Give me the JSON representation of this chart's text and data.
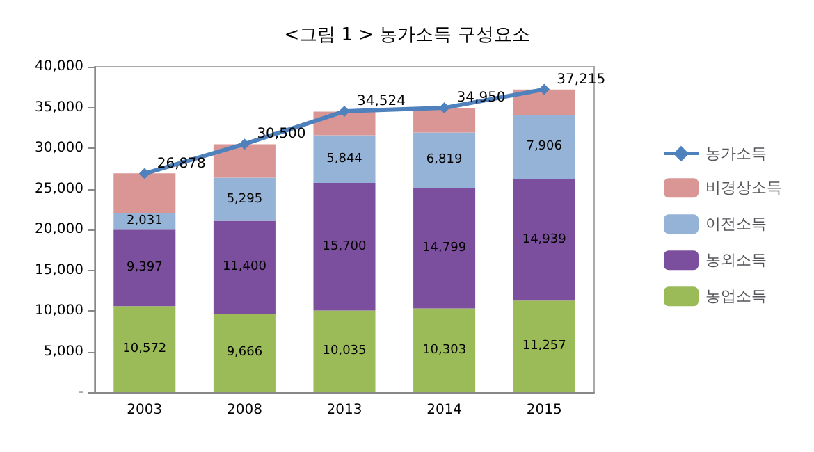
{
  "chart_data": {
    "type": "bar",
    "title": "<그림 1 > 농가소득 구성요소",
    "stacked": true,
    "categories": [
      "2003",
      "2008",
      "2013",
      "2014",
      "2015"
    ],
    "series": [
      {
        "name": "농업소득",
        "color": "#9bbb59",
        "values": [
          10572,
          9666,
          10035,
          10303,
          11257
        ],
        "value_labels": [
          "10,572",
          "9,666",
          "10,035",
          "10,303",
          "11,257"
        ]
      },
      {
        "name": "농외소득",
        "color": "#7b4f9d",
        "values": [
          9397,
          11400,
          15700,
          14799,
          14939
        ],
        "value_labels": [
          "9,397",
          "11,400",
          "15,700",
          "14,799",
          "14,939"
        ]
      },
      {
        "name": "이전소득",
        "color": "#95b3d7",
        "values": [
          2031,
          5295,
          5844,
          6819,
          7906
        ],
        "value_labels": [
          "2,031",
          "5,295",
          "5,844",
          "6,819",
          "7,906"
        ]
      },
      {
        "name": "비경상소득",
        "color": "#d99694",
        "values": [
          4900,
          4100,
          2900,
          3000,
          3100
        ]
      },
      {
        "name": "농가소득",
        "type": "line",
        "color": "#4f81bd",
        "marker": "diamond",
        "values": [
          26878,
          30500,
          34524,
          34950,
          37215
        ],
        "value_labels": [
          "26,878",
          "30,500",
          "34,524",
          "34,950",
          "37,215"
        ]
      }
    ],
    "ylim": [
      0,
      40000
    ],
    "yticks": [
      {
        "value": 0,
        "label": "-"
      },
      {
        "value": 5000,
        "label": "5,000"
      },
      {
        "value": 10000,
        "label": "10,000"
      },
      {
        "value": 15000,
        "label": "15,000"
      },
      {
        "value": 20000,
        "label": "20,000"
      },
      {
        "value": 25000,
        "label": "25,000"
      },
      {
        "value": 30000,
        "label": "30,000"
      },
      {
        "value": 35000,
        "label": "35,000"
      },
      {
        "value": 40000,
        "label": "40,000"
      }
    ],
    "grid": false,
    "legend": "right"
  }
}
